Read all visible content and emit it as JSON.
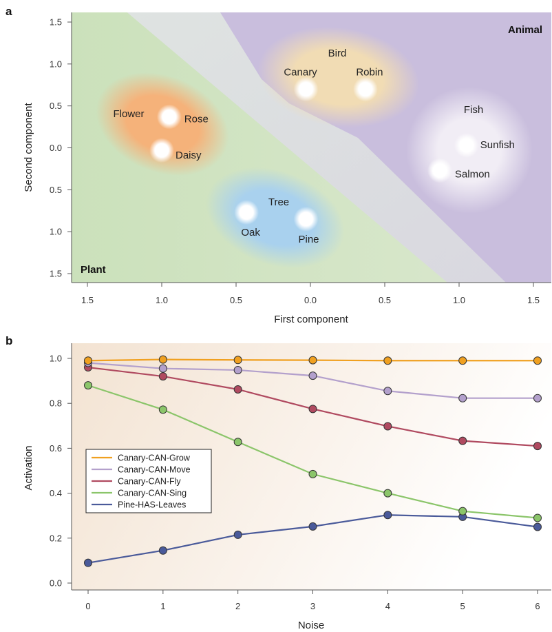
{
  "chart_data": [
    {
      "panel": "a",
      "type": "scatter",
      "xlabel": "First component",
      "ylabel": "Second component",
      "x_ticks": [
        "1.5",
        "1.0",
        "0.5",
        "0.0",
        "0.5",
        "1.0",
        "1.5"
      ],
      "y_ticks": [
        "1.5",
        "1.0",
        "0.5",
        "0.0",
        "0.5",
        "1.0",
        "1.5"
      ],
      "xlim": [
        -1.5,
        1.5
      ],
      "ylim": [
        -1.5,
        1.5
      ],
      "regions": [
        {
          "name": "Plant",
          "color": "#c9dfb8"
        },
        {
          "name": "Animal",
          "color": "#c9bedd"
        }
      ],
      "clusters": [
        {
          "name": "Flower",
          "color": "#f5b27a",
          "items": [
            "Rose",
            "Daisy"
          ]
        },
        {
          "name": "Tree",
          "color": "#a9d1ee",
          "items": [
            "Oak",
            "Pine"
          ]
        },
        {
          "name": "Bird",
          "color": "#f1dcb4",
          "items": [
            "Canary",
            "Robin"
          ]
        },
        {
          "name": "Fish",
          "color": "#f2eef6",
          "items": [
            "Sunfish",
            "Salmon"
          ]
        }
      ],
      "points": [
        {
          "label": "Rose",
          "x": -0.95,
          "y": 0.37
        },
        {
          "label": "Daisy",
          "x": -1.0,
          "y": -0.03
        },
        {
          "label": "Oak",
          "x": -0.43,
          "y": -0.77
        },
        {
          "label": "Pine",
          "x": -0.03,
          "y": -0.85
        },
        {
          "label": "Canary",
          "x": -0.03,
          "y": 0.7
        },
        {
          "label": "Robin",
          "x": 0.37,
          "y": 0.7
        },
        {
          "label": "Sunfish",
          "x": 1.05,
          "y": 0.03
        },
        {
          "label": "Salmon",
          "x": 0.87,
          "y": -0.27
        }
      ]
    },
    {
      "panel": "b",
      "type": "line",
      "xlabel": "Noise",
      "ylabel": "Activation",
      "x": [
        0,
        1,
        2,
        3,
        4,
        5,
        6
      ],
      "ylim": [
        0,
        1.0
      ],
      "y_ticks": [
        "0.0",
        "0.2",
        "0.4",
        "0.6",
        "0.8",
        "1.0"
      ],
      "x_ticks": [
        "0",
        "1",
        "2",
        "3",
        "4",
        "5",
        "6"
      ],
      "legend_position": "center-left",
      "series": [
        {
          "name": "Canary-CAN-Grow",
          "color": "#f0a020",
          "values": [
            0.99,
            0.995,
            0.993,
            0.992,
            0.99,
            0.99,
            0.99
          ]
        },
        {
          "name": "Canary-CAN-Move",
          "color": "#b3a0cc",
          "values": [
            0.98,
            0.955,
            0.948,
            0.923,
            0.855,
            0.823,
            0.823
          ]
        },
        {
          "name": "Canary-CAN-Fly",
          "color": "#b04a60",
          "values": [
            0.96,
            0.92,
            0.862,
            0.775,
            0.698,
            0.633,
            0.61
          ]
        },
        {
          "name": "Canary-CAN-Sing",
          "color": "#8bc56a",
          "values": [
            0.88,
            0.772,
            0.628,
            0.485,
            0.4,
            0.32,
            0.29
          ]
        },
        {
          "name": "Pine-HAS-Leaves",
          "color": "#4a5a9a",
          "values": [
            0.09,
            0.145,
            0.215,
            0.252,
            0.303,
            0.295,
            0.25
          ]
        }
      ]
    }
  ],
  "panel_letters": {
    "a": "a",
    "b": "b"
  }
}
